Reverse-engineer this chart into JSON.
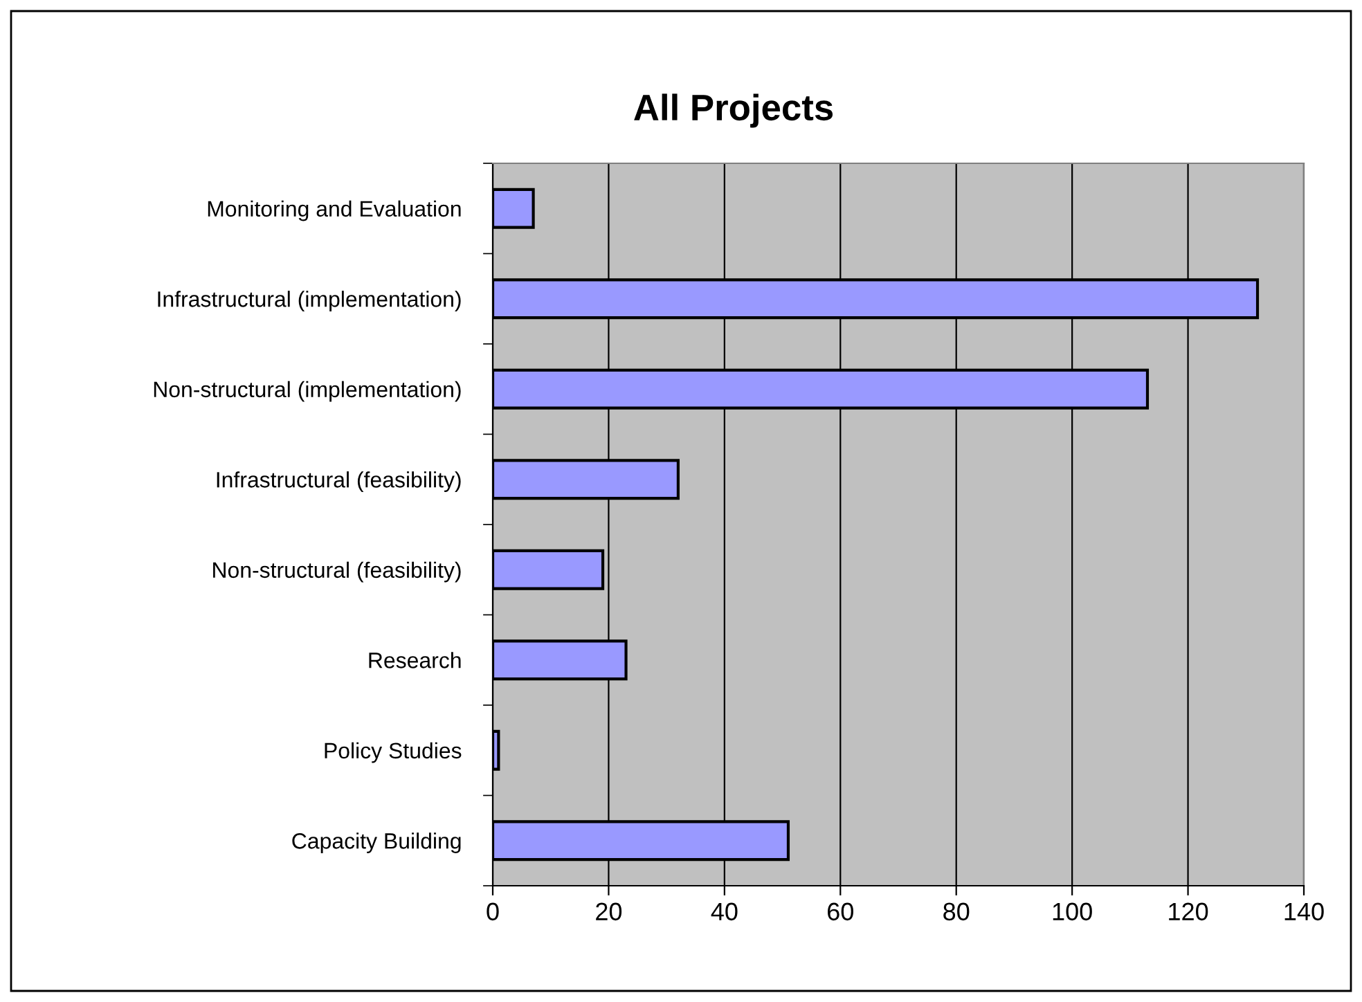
{
  "chart_data": {
    "type": "bar",
    "orientation": "horizontal",
    "title": "All Projects",
    "categories": [
      "Monitoring and Evaluation",
      "Infrastructural (implementation)",
      "Non-structural (implementation)",
      "Infrastructural (feasibility)",
      "Non-structural (feasibility)",
      "Research",
      "Policy Studies",
      "Capacity Building"
    ],
    "values": [
      7,
      132,
      113,
      32,
      19,
      23,
      1,
      51
    ],
    "color": "#9999ff",
    "xlim": [
      0,
      140
    ],
    "xticks": [
      0,
      20,
      40,
      60,
      80,
      100,
      120,
      140
    ],
    "grid": "x"
  }
}
